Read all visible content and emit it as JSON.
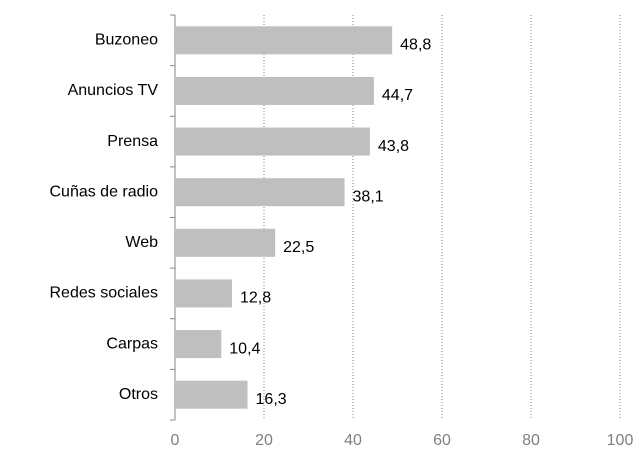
{
  "chart_data": {
    "type": "hbar",
    "categories": [
      "Buzoneo",
      "Anuncios TV",
      "Prensa",
      "Cuñas de radio",
      "Web",
      "Redes sociales",
      "Carpas",
      "Otros"
    ],
    "values": [
      48.8,
      44.7,
      43.8,
      38.1,
      22.5,
      12.8,
      10.4,
      16.3
    ],
    "value_labels": [
      "48,8",
      "44,7",
      "43,8",
      "38,1",
      "22,5",
      "12,8",
      "10,4",
      "16,3"
    ],
    "color": "#bfbfbf",
    "xlim": [
      0,
      100
    ],
    "xticks": [
      0,
      20,
      40,
      60,
      80,
      100
    ],
    "grid": true
  }
}
